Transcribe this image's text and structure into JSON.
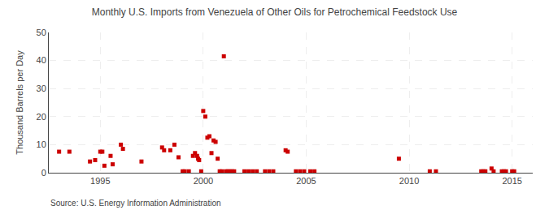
{
  "chart_data": {
    "type": "scatter",
    "title": "Monthly U.S. Imports from Venezuela of Other Oils for Petrochemical Feedstock Use",
    "ylabel": "Thousand Barrels per Day",
    "annotations": [
      "Source: U.S. Energy Information Administration"
    ],
    "color": "#cc0000",
    "marker": "square",
    "grid": true,
    "xlim": [
      1992.5,
      2016.0
    ],
    "ylim": [
      0,
      50
    ],
    "xticks": [
      1995,
      2000,
      2005,
      2010,
      2015
    ],
    "yticks": [
      0,
      10,
      20,
      30,
      40,
      50
    ],
    "x": [
      1993.0,
      1993.5,
      1994.5,
      1994.75,
      1995.0,
      1995.1,
      1995.2,
      1995.5,
      1995.6,
      1996.0,
      1996.1,
      1997.0,
      1998.0,
      1998.1,
      1998.4,
      1998.6,
      1998.8,
      1999.0,
      1999.1,
      1999.3,
      1999.5,
      1999.6,
      1999.7,
      1999.75,
      1999.8,
      1999.9,
      2000.0,
      2000.1,
      2000.2,
      2000.3,
      2000.4,
      2000.5,
      2000.6,
      2000.7,
      2000.8,
      2000.9,
      2001.0,
      2001.1,
      2001.2,
      2001.3,
      2001.4,
      2001.5,
      2002.0,
      2002.2,
      2002.4,
      2002.6,
      2003.0,
      2003.2,
      2003.4,
      2004.0,
      2004.1,
      2004.5,
      2004.7,
      2004.9,
      2005.2,
      2005.4,
      2009.5,
      2011.0,
      2011.3,
      2013.5,
      2013.6,
      2013.7,
      2014.0,
      2014.1,
      2014.5,
      2014.6,
      2014.7,
      2015.0,
      2015.1
    ],
    "values": [
      7.5,
      7.5,
      4.0,
      4.5,
      7.5,
      7.5,
      2.5,
      6.0,
      3.0,
      10.0,
      8.5,
      4.0,
      9.0,
      8.0,
      8.0,
      10.0,
      5.5,
      0.5,
      0.5,
      0.5,
      6.0,
      7.0,
      6.0,
      5.0,
      4.5,
      0.5,
      22.0,
      20.0,
      12.5,
      13.0,
      7.0,
      11.5,
      11.0,
      5.0,
      0.5,
      0.5,
      41.5,
      0.5,
      0.5,
      0.5,
      0.5,
      0.5,
      0.5,
      0.5,
      0.5,
      0.5,
      0.5,
      0.5,
      0.5,
      8.0,
      7.5,
      0.5,
      0.5,
      0.5,
      0.5,
      0.5,
      5.0,
      0.5,
      0.5,
      0.5,
      0.5,
      0.5,
      1.5,
      0.5,
      0.5,
      0.5,
      0.5,
      0.5,
      0.5
    ]
  }
}
